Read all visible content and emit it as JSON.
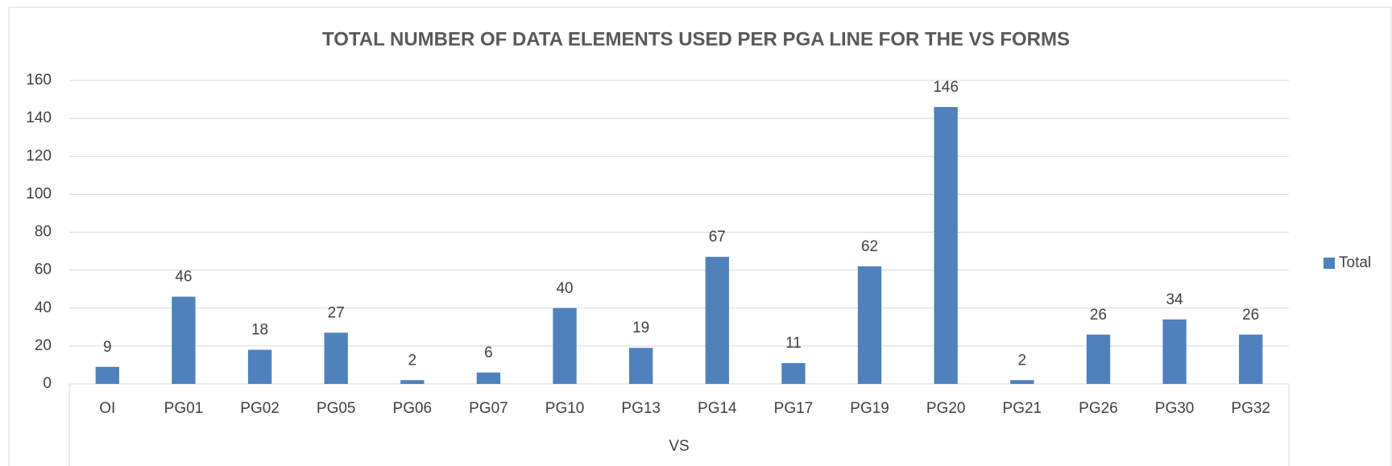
{
  "chart_data": {
    "type": "bar",
    "title": "TOTAL NUMBER OF DATA ELEMENTS USED PER PGA LINE FOR THE VS FORMS",
    "x_group_label": "VS",
    "categories": [
      "OI",
      "PG01",
      "PG02",
      "PG05",
      "PG06",
      "PG07",
      "PG10",
      "PG13",
      "PG14",
      "PG17",
      "PG19",
      "PG20",
      "PG21",
      "PG26",
      "PG30",
      "PG32"
    ],
    "series": [
      {
        "name": "Total",
        "color": "#4f81bd",
        "values": [
          9,
          46,
          18,
          27,
          2,
          6,
          40,
          19,
          67,
          11,
          62,
          146,
          2,
          26,
          34,
          26
        ]
      }
    ],
    "ylim": [
      0,
      160
    ],
    "yticks": [
      0,
      20,
      40,
      60,
      80,
      100,
      120,
      140,
      160
    ],
    "grid": true,
    "legend": "right"
  }
}
